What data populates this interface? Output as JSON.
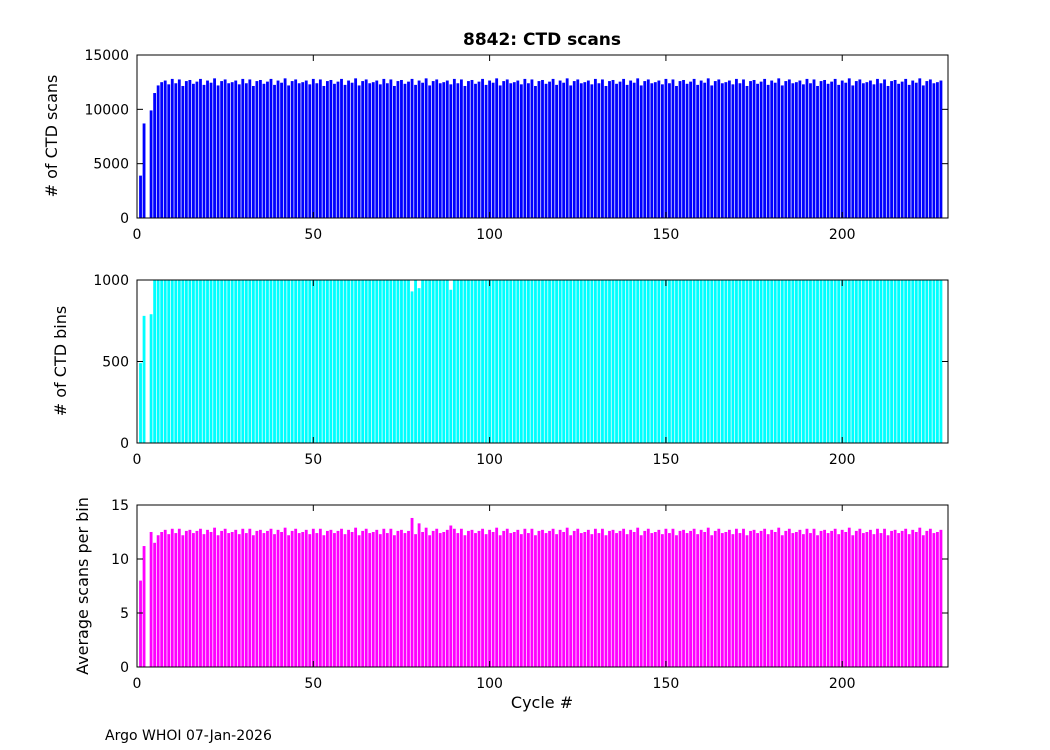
{
  "figure": {
    "title": "8842: CTD scans",
    "xlabel": "Cycle #",
    "footer": "Argo WHOI 07-Jan-2026"
  },
  "chart_data": [
    {
      "type": "bar",
      "name": "ctd-scans",
      "title": "8842: CTD scans",
      "ylabel": "# of CTD scans",
      "color": "#0000ff",
      "xlim": [
        0,
        230
      ],
      "ylim": [
        0,
        15000
      ],
      "xticks": [
        0,
        50,
        100,
        150,
        200
      ],
      "yticks": [
        0,
        5000,
        10000,
        15000
      ],
      "x_start": 1,
      "x_step": 1,
      "n": 228,
      "values": [
        3900,
        8700,
        0,
        9900,
        11500,
        12200,
        12500,
        12650,
        12300,
        12800,
        12400,
        12750,
        12150,
        12600,
        12700,
        12350,
        12550,
        12800,
        12250,
        12650,
        12450,
        12850,
        12200,
        12600,
        12750,
        12400,
        12500,
        12650,
        12300,
        12800,
        12400,
        12750,
        12150,
        12600,
        12700,
        12350,
        12550,
        12800,
        12250,
        12650,
        12450,
        12850,
        12200,
        12600,
        12750,
        12400,
        12500,
        12650,
        12300,
        12800,
        12400,
        12750,
        12150,
        12600,
        12700,
        12350,
        12550,
        12800,
        12250,
        12650,
        12450,
        12850,
        12200,
        12600,
        12750,
        12400,
        12500,
        12650,
        12300,
        12800,
        12400,
        12750,
        12150,
        12600,
        12700,
        12350,
        12550,
        12800,
        12250,
        12650,
        12450,
        12850,
        12200,
        12600,
        12750,
        12400,
        12500,
        12650,
        12300,
        12800,
        12400,
        12750,
        12150,
        12600,
        12700,
        12350,
        12550,
        12800,
        12250,
        12650,
        12450,
        12850,
        12200,
        12600,
        12750,
        12400,
        12500,
        12650,
        12300,
        12800,
        12400,
        12750,
        12150,
        12600,
        12700,
        12350,
        12550,
        12800,
        12250,
        12650,
        12450,
        12850,
        12200,
        12600,
        12750,
        12400,
        12500,
        12650,
        12300,
        12800,
        12400,
        12750,
        12150,
        12600,
        12700,
        12350,
        12550,
        12800,
        12250,
        12650,
        12450,
        12850,
        12200,
        12600,
        12750,
        12400,
        12500,
        12650,
        12300,
        12800,
        12400,
        12750,
        12150,
        12600,
        12700,
        12350,
        12550,
        12800,
        12250,
        12650,
        12450,
        12850,
        12200,
        12600,
        12750,
        12400,
        12500,
        12650,
        12300,
        12800,
        12400,
        12750,
        12150,
        12600,
        12700,
        12350,
        12550,
        12800,
        12250,
        12650,
        12450,
        12850,
        12200,
        12600,
        12750,
        12400,
        12500,
        12650,
        12300,
        12800,
        12400,
        12750,
        12150,
        12600,
        12700,
        12350,
        12550,
        12800,
        12250,
        12650,
        12450,
        12850,
        12200,
        12600,
        12750,
        12400,
        12500,
        12650,
        12300,
        12800,
        12400,
        12750,
        12150,
        12600,
        12700,
        12350,
        12550,
        12800,
        12250,
        12650,
        12450,
        12850,
        12200,
        12600,
        12750,
        12400,
        12500,
        12650
      ]
    },
    {
      "type": "bar",
      "name": "ctd-bins",
      "ylabel": "# of CTD bins",
      "color": "#00ffff",
      "xlim": [
        0,
        230
      ],
      "ylim": [
        0,
        1000
      ],
      "xticks": [
        0,
        50,
        100,
        150,
        200
      ],
      "yticks": [
        0,
        500,
        1000
      ],
      "x_start": 1,
      "x_step": 1,
      "n": 228,
      "values": [
        490,
        780,
        0,
        790,
        1000,
        1000,
        1000,
        1000,
        1000,
        1000,
        1000,
        1000,
        1000,
        1000,
        1000,
        1000,
        1000,
        1000,
        1000,
        1000,
        1000,
        1000,
        1000,
        1000,
        1000,
        1000,
        1000,
        1000,
        1000,
        1000,
        1000,
        1000,
        1000,
        1000,
        1000,
        1000,
        1000,
        1000,
        1000,
        1000,
        1000,
        1000,
        1000,
        1000,
        1000,
        1000,
        1000,
        1000,
        1000,
        1000,
        1000,
        1000,
        1000,
        1000,
        1000,
        1000,
        1000,
        1000,
        1000,
        1000,
        1000,
        1000,
        1000,
        1000,
        1000,
        1000,
        1000,
        1000,
        1000,
        1000,
        1000,
        1000,
        1000,
        1000,
        1000,
        1000,
        1000,
        930,
        1000,
        950,
        1000,
        1000,
        1000,
        1000,
        1000,
        1000,
        1000,
        1000,
        940,
        1000,
        1000,
        1000,
        1000,
        1000,
        1000,
        1000,
        1000,
        1000,
        1000,
        1000,
        1000,
        1000,
        1000,
        1000,
        1000,
        1000,
        1000,
        1000,
        1000,
        1000,
        1000,
        1000,
        1000,
        1000,
        1000,
        1000,
        1000,
        1000,
        1000,
        1000,
        1000,
        1000,
        1000,
        1000,
        1000,
        1000,
        1000,
        1000,
        1000,
        1000,
        1000,
        1000,
        1000,
        1000,
        1000,
        1000,
        1000,
        1000,
        1000,
        1000,
        1000,
        1000,
        1000,
        1000,
        1000,
        1000,
        1000,
        1000,
        1000,
        1000,
        1000,
        1000,
        1000,
        1000,
        1000,
        1000,
        1000,
        1000,
        1000,
        1000,
        1000,
        1000,
        1000,
        1000,
        1000,
        1000,
        1000,
        1000,
        1000,
        1000,
        1000,
        1000,
        1000,
        1000,
        1000,
        1000,
        1000,
        1000,
        1000,
        1000,
        1000,
        1000,
        1000,
        1000,
        1000,
        1000,
        1000,
        1000,
        1000,
        1000,
        1000,
        1000,
        1000,
        1000,
        1000,
        1000,
        1000,
        1000,
        1000,
        1000,
        1000,
        1000,
        1000,
        1000,
        1000,
        1000,
        1000,
        1000,
        1000,
        1000,
        1000,
        1000,
        1000,
        1000,
        1000,
        1000,
        1000,
        1000,
        1000,
        1000,
        1000,
        1000,
        1000,
        1000,
        1000,
        1000,
        1000,
        1000
      ]
    },
    {
      "type": "bar",
      "name": "average-scans-per-bin",
      "ylabel": "Average scans per bin",
      "xlabel": "Cycle #",
      "color": "#ff00ff",
      "xlim": [
        0,
        230
      ],
      "ylim": [
        0,
        15
      ],
      "xticks": [
        0,
        50,
        100,
        150,
        200
      ],
      "yticks": [
        0,
        5,
        10,
        15
      ],
      "x_start": 1,
      "x_step": 1,
      "n": 228,
      "values": [
        8.0,
        11.2,
        0,
        12.5,
        11.5,
        12.2,
        12.5,
        12.7,
        12.3,
        12.8,
        12.4,
        12.8,
        12.2,
        12.6,
        12.7,
        12.4,
        12.6,
        12.8,
        12.3,
        12.7,
        12.5,
        12.9,
        12.2,
        12.6,
        12.8,
        12.4,
        12.5,
        12.7,
        12.3,
        12.8,
        12.4,
        12.8,
        12.2,
        12.6,
        12.7,
        12.4,
        12.6,
        12.8,
        12.3,
        12.7,
        12.5,
        12.9,
        12.2,
        12.6,
        12.8,
        12.4,
        12.5,
        12.7,
        12.3,
        12.8,
        12.4,
        12.8,
        12.2,
        12.6,
        12.7,
        12.4,
        12.6,
        12.8,
        12.3,
        12.7,
        12.5,
        12.9,
        12.2,
        12.6,
        12.8,
        12.4,
        12.5,
        12.7,
        12.3,
        12.8,
        12.4,
        12.8,
        12.2,
        12.6,
        12.7,
        12.4,
        12.6,
        13.8,
        12.3,
        13.3,
        12.5,
        12.9,
        12.2,
        12.6,
        12.8,
        12.4,
        12.5,
        12.7,
        13.1,
        12.8,
        12.4,
        12.8,
        12.2,
        12.6,
        12.7,
        12.4,
        12.6,
        12.8,
        12.3,
        12.7,
        12.5,
        12.9,
        12.2,
        12.6,
        12.8,
        12.4,
        12.5,
        12.7,
        12.3,
        12.8,
        12.4,
        12.8,
        12.2,
        12.6,
        12.7,
        12.4,
        12.6,
        12.8,
        12.3,
        12.7,
        12.5,
        12.9,
        12.2,
        12.6,
        12.8,
        12.4,
        12.5,
        12.7,
        12.3,
        12.8,
        12.4,
        12.8,
        12.2,
        12.6,
        12.7,
        12.4,
        12.6,
        12.8,
        12.3,
        12.7,
        12.5,
        12.9,
        12.2,
        12.6,
        12.8,
        12.4,
        12.5,
        12.7,
        12.3,
        12.8,
        12.4,
        12.8,
        12.2,
        12.6,
        12.7,
        12.4,
        12.6,
        12.8,
        12.3,
        12.7,
        12.5,
        12.9,
        12.2,
        12.6,
        12.8,
        12.4,
        12.5,
        12.7,
        12.3,
        12.8,
        12.4,
        12.8,
        12.2,
        12.6,
        12.7,
        12.4,
        12.6,
        12.8,
        12.3,
        12.7,
        12.5,
        12.9,
        12.2,
        12.6,
        12.8,
        12.4,
        12.5,
        12.7,
        12.3,
        12.8,
        12.4,
        12.8,
        12.2,
        12.6,
        12.7,
        12.4,
        12.6,
        12.8,
        12.3,
        12.7,
        12.5,
        12.9,
        12.2,
        12.6,
        12.8,
        12.4,
        12.5,
        12.7,
        12.3,
        12.8,
        12.4,
        12.8,
        12.2,
        12.6,
        12.7,
        12.4,
        12.6,
        12.8,
        12.3,
        12.7,
        12.5,
        12.9,
        12.2,
        12.6,
        12.8,
        12.4,
        12.5,
        12.7
      ]
    }
  ]
}
